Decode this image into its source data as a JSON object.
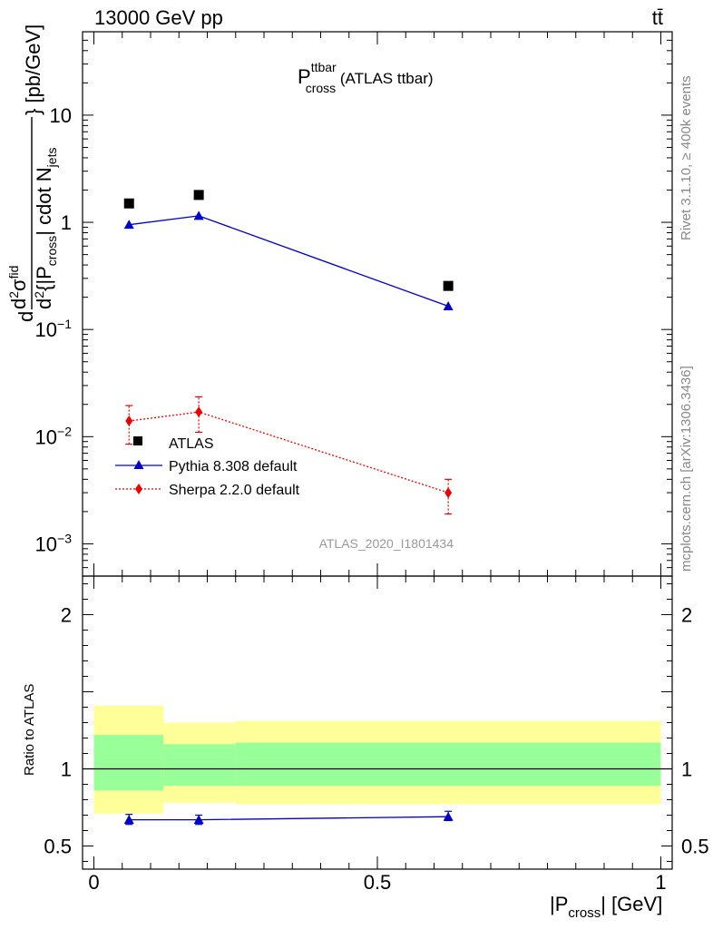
{
  "header": {
    "energy_label": "13000 GeV pp",
    "process_label": "tt̄"
  },
  "side_text": {
    "rivet": "Rivet 3.1.10, ≥ 400k events",
    "mcplots": "mcplots.cern.ch [arXiv:1306.3436]"
  },
  "plot_title": {
    "main": "P",
    "sup": "ttbar",
    "sub": "cross",
    "suffix": " (ATLAS ttbar)"
  },
  "analysis_id": "ATLAS_2020_I1801434",
  "main_ylabel": {
    "part_a": "d",
    "part_b": "σ",
    "part_c": "fid",
    "part_d": "d",
    "part_e": "{|P",
    "part_f": "cross",
    "part_g": "| cdot N",
    "part_h": "jets",
    "part_i": "} [pb/GeV]",
    "sup2": "2"
  },
  "ratio_ylabel": "Ratio to ATLAS",
  "xlabel": {
    "pre": "|P",
    "sub": "cross",
    "post": "| [GeV]"
  },
  "legend": [
    {
      "label": "ATLAS",
      "marker": "square",
      "color": "#000000"
    },
    {
      "label": "Pythia 8.308 default",
      "marker": "triangle",
      "color": "#0000cc"
    },
    {
      "label": "Sherpa 2.2.0 default",
      "marker": "diamond",
      "color": "#ee0000"
    }
  ],
  "chart_data": {
    "type": "scatter",
    "x_range": [
      -0.02,
      1.02
    ],
    "main": {
      "y_scale": "log",
      "y_range": [
        0.0005,
        60
      ],
      "y_tick_labels": [
        {
          "value": 10,
          "text": "10"
        },
        {
          "value": 1,
          "text": "1"
        },
        {
          "value": 0.1,
          "base": "10",
          "exp": "−1"
        },
        {
          "value": 0.01,
          "base": "10",
          "exp": "−2"
        },
        {
          "value": 0.001,
          "base": "10",
          "exp": "−3"
        }
      ],
      "series": [
        {
          "name": "ATLAS",
          "marker": "square",
          "color": "#000000",
          "points": [
            {
              "x": 0.062,
              "y": 1.5
            },
            {
              "x": 0.185,
              "y": 1.8
            },
            {
              "x": 0.625,
              "y": 0.255
            }
          ]
        },
        {
          "name": "Pythia 8.308 default",
          "marker": "triangle",
          "color": "#0000cc",
          "line": "solid",
          "points": [
            {
              "x": 0.062,
              "y": 0.95
            },
            {
              "x": 0.185,
              "y": 1.15
            },
            {
              "x": 0.625,
              "y": 0.165
            }
          ]
        },
        {
          "name": "Sherpa 2.2.0 default",
          "marker": "diamond",
          "color": "#ee0000",
          "line": "dotted",
          "points": [
            {
              "x": 0.062,
              "y": 0.014,
              "ylo": 0.0085,
              "yhi": 0.0195
            },
            {
              "x": 0.185,
              "y": 0.017,
              "ylo": 0.011,
              "yhi": 0.0235
            },
            {
              "x": 0.625,
              "y": 0.003,
              "ylo": 0.0019,
              "yhi": 0.004
            }
          ]
        }
      ]
    },
    "ratio": {
      "y_scale": "linear",
      "y_range": [
        0.35,
        2.25
      ],
      "y_tick_labels": [
        {
          "value": 2,
          "text": "2"
        },
        {
          "value": 1,
          "text": "1"
        },
        {
          "value": 0.5,
          "text": "0.5"
        }
      ],
      "x_tick_labels": [
        {
          "value": 0,
          "text": "0"
        },
        {
          "value": 0.5,
          "text": "0.5"
        },
        {
          "value": 1,
          "text": "1"
        }
      ],
      "bands": [
        {
          "x0": 0.0,
          "x1": 0.123,
          "stat_lo": 0.86,
          "stat_hi": 1.22,
          "tot_lo": 0.71,
          "tot_hi": 1.41
        },
        {
          "x0": 0.123,
          "x1": 0.25,
          "stat_lo": 0.89,
          "stat_hi": 1.16,
          "tot_lo": 0.78,
          "tot_hi": 1.3
        },
        {
          "x0": 0.25,
          "x1": 1.0,
          "stat_lo": 0.89,
          "stat_hi": 1.17,
          "tot_lo": 0.77,
          "tot_hi": 1.31
        }
      ],
      "band_colors": {
        "stat": "#99ff99",
        "total": "#ffff99"
      },
      "series": [
        {
          "name": "Pythia 8.308 default",
          "marker": "triangle",
          "color": "#0000cc",
          "points": [
            {
              "x": 0.062,
              "y": 0.67,
              "ylo": 0.64,
              "yhi": 0.705
            },
            {
              "x": 0.185,
              "y": 0.67,
              "ylo": 0.64,
              "yhi": 0.7
            },
            {
              "x": 0.625,
              "y": 0.69,
              "ylo": 0.665,
              "yhi": 0.725
            }
          ]
        }
      ]
    }
  }
}
